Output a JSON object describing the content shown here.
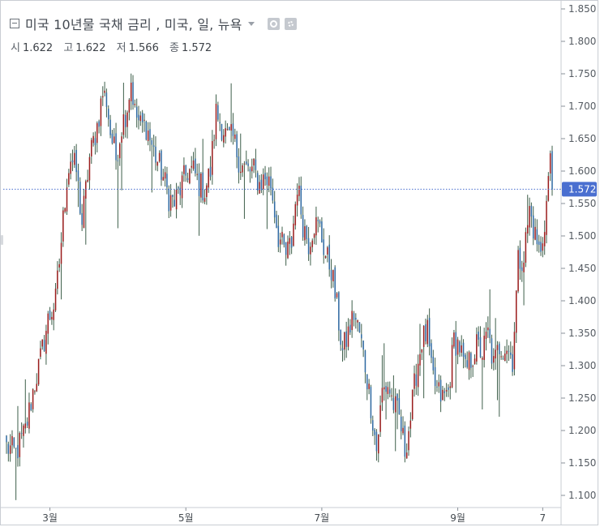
{
  "header": {
    "title": "미국 10년물 국채 금리 , 미국, 일, 뉴욕",
    "ohlc": [
      {
        "label": "시",
        "value": "1.622"
      },
      {
        "label": "고",
        "value": "1.622"
      },
      {
        "label": "저",
        "value": "1.566"
      },
      {
        "label": "종",
        "value": "1.572"
      }
    ]
  },
  "colors": {
    "up": "#9b1c1c",
    "down": "#2f6aa3",
    "wick": "#3e5f4a",
    "last_price": "#4a6fd0"
  },
  "chart_data": {
    "type": "candlestick",
    "price_axis": {
      "min": 1.1,
      "max": 1.85,
      "ticks": [
        "1.850",
        "1.800",
        "1.750",
        "1.700",
        "1.650",
        "1.600",
        "1.550",
        "1.500",
        "1.450",
        "1.400",
        "1.350",
        "1.300",
        "1.250",
        "1.200",
        "1.150",
        "1.100"
      ]
    },
    "time_axis": {
      "labels": [
        {
          "text": "3월",
          "index": 23
        },
        {
          "text": "5월",
          "index": 95
        },
        {
          "text": "7월",
          "index": 167
        },
        {
          "text": "9월",
          "index": 239
        },
        {
          "text": "7",
          "index": 284
        }
      ]
    },
    "last_price": {
      "value": 1.572,
      "label": "1.572"
    },
    "candle_count": 290,
    "anchors": [
      [
        0,
        1.175
      ],
      [
        5,
        1.165
      ],
      [
        10,
        1.2
      ],
      [
        14,
        1.26
      ],
      [
        18,
        1.31
      ],
      [
        22,
        1.37
      ],
      [
        26,
        1.4
      ],
      [
        28,
        1.46
      ],
      [
        32,
        1.59
      ],
      [
        34,
        1.62
      ],
      [
        37,
        1.6
      ],
      [
        40,
        1.52
      ],
      [
        44,
        1.62
      ],
      [
        48,
        1.67
      ],
      [
        51,
        1.72
      ],
      [
        53,
        1.71
      ],
      [
        55,
        1.66
      ],
      [
        58,
        1.62
      ],
      [
        61,
        1.67
      ],
      [
        64,
        1.7
      ],
      [
        66,
        1.74
      ],
      [
        68,
        1.69
      ],
      [
        71,
        1.67
      ],
      [
        74,
        1.67
      ],
      [
        78,
        1.63
      ],
      [
        82,
        1.6
      ],
      [
        86,
        1.56
      ],
      [
        89,
        1.55
      ],
      [
        93,
        1.58
      ],
      [
        96,
        1.6
      ],
      [
        99,
        1.6
      ],
      [
        102,
        1.58
      ],
      [
        105,
        1.57
      ],
      [
        108,
        1.6
      ],
      [
        111,
        1.69
      ],
      [
        114,
        1.67
      ],
      [
        117,
        1.65
      ],
      [
        120,
        1.65
      ],
      [
        124,
        1.61
      ],
      [
        128,
        1.6
      ],
      [
        131,
        1.6
      ],
      [
        134,
        1.58
      ],
      [
        137,
        1.59
      ],
      [
        140,
        1.58
      ],
      [
        144,
        1.5
      ],
      [
        148,
        1.47
      ],
      [
        151,
        1.49
      ],
      [
        154,
        1.58
      ],
      [
        157,
        1.52
      ],
      [
        160,
        1.49
      ],
      [
        163,
        1.52
      ],
      [
        166,
        1.51
      ],
      [
        169,
        1.47
      ],
      [
        172,
        1.45
      ],
      [
        175,
        1.39
      ],
      [
        178,
        1.32
      ],
      [
        181,
        1.35
      ],
      [
        184,
        1.38
      ],
      [
        187,
        1.35
      ],
      [
        190,
        1.3
      ],
      [
        193,
        1.24
      ],
      [
        196,
        1.17
      ],
      [
        199,
        1.26
      ],
      [
        202,
        1.27
      ],
      [
        205,
        1.24
      ],
      [
        208,
        1.22
      ],
      [
        211,
        1.17
      ],
      [
        214,
        1.22
      ],
      [
        217,
        1.29
      ],
      [
        220,
        1.34
      ],
      [
        223,
        1.35
      ],
      [
        225,
        1.29
      ],
      [
        228,
        1.26
      ],
      [
        231,
        1.25
      ],
      [
        234,
        1.26
      ],
      [
        237,
        1.34
      ],
      [
        240,
        1.33
      ],
      [
        243,
        1.29
      ],
      [
        246,
        1.31
      ],
      [
        249,
        1.33
      ],
      [
        252,
        1.32
      ],
      [
        255,
        1.35
      ],
      [
        258,
        1.3
      ],
      [
        261,
        1.33
      ],
      [
        265,
        1.33
      ],
      [
        268,
        1.31
      ],
      [
        271,
        1.46
      ],
      [
        274,
        1.47
      ],
      [
        277,
        1.54
      ],
      [
        280,
        1.5
      ],
      [
        283,
        1.47
      ],
      [
        286,
        1.55
      ],
      [
        287,
        1.59
      ],
      [
        288,
        1.615
      ],
      [
        289,
        1.572
      ]
    ]
  }
}
